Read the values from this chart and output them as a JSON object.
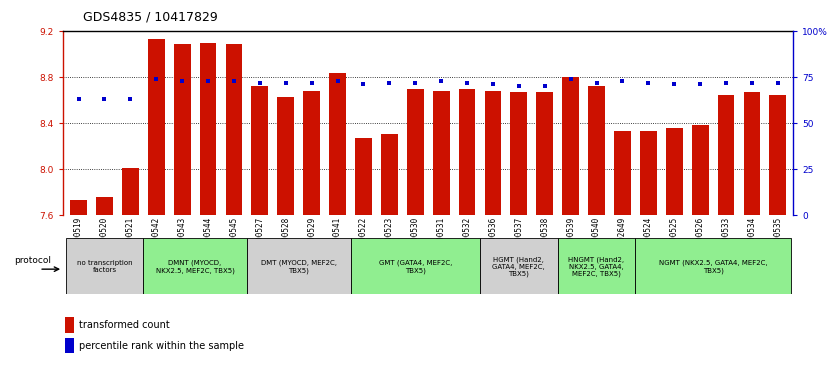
{
  "title": "GDS4835 / 10417829",
  "samples": [
    "GSM1100519",
    "GSM1100520",
    "GSM1100521",
    "GSM1100542",
    "GSM1100543",
    "GSM1100544",
    "GSM1100545",
    "GSM1100527",
    "GSM1100528",
    "GSM1100529",
    "GSM1100541",
    "GSM1100522",
    "GSM1100523",
    "GSM1100530",
    "GSM1100531",
    "GSM1100532",
    "GSM1100536",
    "GSM1100537",
    "GSM1100538",
    "GSM1100539",
    "GSM1100540",
    "GSM1102649",
    "GSM1100524",
    "GSM1100525",
    "GSM1100526",
    "GSM1100533",
    "GSM1100534",
    "GSM1100535"
  ],
  "bar_values": [
    7.73,
    7.75,
    8.01,
    9.13,
    9.09,
    9.1,
    9.09,
    8.72,
    8.63,
    8.68,
    8.84,
    8.27,
    8.3,
    8.7,
    8.68,
    8.7,
    8.68,
    8.67,
    8.67,
    8.8,
    8.72,
    8.33,
    8.33,
    8.36,
    8.38,
    8.64,
    8.67,
    8.64
  ],
  "percentile_values": [
    63,
    63,
    63,
    74,
    73,
    73,
    73,
    72,
    72,
    72,
    73,
    71,
    72,
    72,
    73,
    72,
    71,
    70,
    70,
    74,
    72,
    73,
    72,
    71,
    71,
    72,
    72,
    72
  ],
  "ylim_left": [
    7.6,
    9.2
  ],
  "ylim_right": [
    0,
    100
  ],
  "yticks_left": [
    7.6,
    8.0,
    8.4,
    8.8,
    9.2
  ],
  "yticks_right": [
    0,
    25,
    50,
    75,
    100
  ],
  "grid_lines": [
    8.0,
    8.4,
    8.8
  ],
  "bar_color": "#CC1100",
  "dot_color": "#0000CC",
  "bar_width": 0.65,
  "groups": [
    {
      "label": "no transcription\nfactors",
      "start": 0,
      "end": 3,
      "color": "#d0d0d0"
    },
    {
      "label": "DMNT (MYOCD,\nNKX2.5, MEF2C, TBX5)",
      "start": 3,
      "end": 7,
      "color": "#90ee90"
    },
    {
      "label": "DMT (MYOCD, MEF2C,\nTBX5)",
      "start": 7,
      "end": 11,
      "color": "#d0d0d0"
    },
    {
      "label": "GMT (GATA4, MEF2C,\nTBX5)",
      "start": 11,
      "end": 16,
      "color": "#90ee90"
    },
    {
      "label": "HGMT (Hand2,\nGATA4, MEF2C,\nTBX5)",
      "start": 16,
      "end": 19,
      "color": "#d0d0d0"
    },
    {
      "label": "HNGMT (Hand2,\nNKX2.5, GATA4,\nMEF2C, TBX5)",
      "start": 19,
      "end": 22,
      "color": "#90ee90"
    },
    {
      "label": "NGMT (NKX2.5, GATA4, MEF2C,\nTBX5)",
      "start": 22,
      "end": 28,
      "color": "#90ee90"
    }
  ],
  "protocol_label": "protocol",
  "legend_bar": "transformed count",
  "legend_dot": "percentile rank within the sample",
  "title_fontsize": 9,
  "tick_fontsize": 6.5,
  "label_fontsize": 5.5,
  "group_fontsize": 5.0
}
